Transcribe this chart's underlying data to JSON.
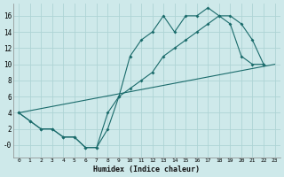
{
  "xlabel": "Humidex (Indice chaleur)",
  "bg_color": "#cee9ea",
  "grid_color": "#aed4d5",
  "line_color": "#1a6b6b",
  "xlim": [
    -0.5,
    23.5
  ],
  "ylim": [
    -1.5,
    17.5
  ],
  "xticks": [
    0,
    1,
    2,
    3,
    4,
    5,
    6,
    7,
    8,
    9,
    10,
    11,
    12,
    13,
    14,
    15,
    16,
    17,
    18,
    19,
    20,
    21,
    22,
    23
  ],
  "yticks": [
    0,
    2,
    4,
    6,
    8,
    10,
    12,
    14,
    16
  ],
  "ytick_labels": [
    "-0",
    "2",
    "4",
    "6",
    "8",
    "10",
    "12",
    "14",
    "16"
  ],
  "series": [
    {
      "x": [
        0,
        1,
        2,
        3,
        4,
        5,
        6,
        7,
        8,
        9,
        10,
        11,
        12,
        13,
        14,
        15,
        16,
        17,
        18,
        19,
        20,
        21,
        22
      ],
      "y": [
        4,
        3,
        2,
        2,
        1,
        1,
        -0.3,
        -0.3,
        2,
        6,
        11,
        13,
        14,
        16,
        14,
        16,
        16,
        17,
        16,
        15,
        11,
        10,
        10
      ],
      "marker": true
    },
    {
      "x": [
        0,
        1,
        2,
        3,
        4,
        5,
        6,
        7,
        8,
        9,
        10,
        11,
        12,
        13,
        14,
        15,
        16,
        17,
        18,
        19,
        20,
        21,
        22
      ],
      "y": [
        4,
        3,
        2,
        2,
        1,
        1,
        -0.3,
        -0.3,
        4,
        6,
        7,
        8,
        9,
        11,
        12,
        13,
        14,
        15,
        16,
        16,
        15,
        13,
        10
      ],
      "marker": true
    },
    {
      "x": [
        0,
        23
      ],
      "y": [
        4,
        10
      ],
      "marker": false
    }
  ]
}
